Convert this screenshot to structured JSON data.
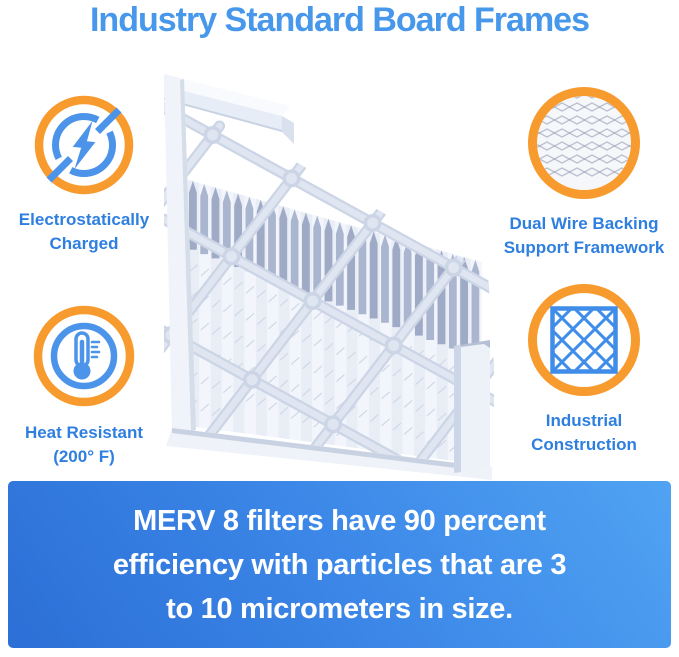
{
  "title": "Industry Standard Board Frames",
  "features": [
    {
      "name": "electrostatically-charged",
      "icon": "lightning-bolt-icon",
      "label_lines": [
        "Electrostatically",
        "Charged"
      ]
    },
    {
      "name": "heat-resistant",
      "icon": "thermometer-icon",
      "label_lines": [
        "Heat Resistant",
        "(200° F)"
      ]
    },
    {
      "name": "dual-wire-backing",
      "icon": "wire-mesh-photo-icon",
      "label_lines": [
        "Dual Wire Backing",
        "Support Framework"
      ]
    },
    {
      "name": "industrial-construction",
      "icon": "lattice-grid-icon",
      "label_lines": [
        "Industrial",
        "Construction"
      ]
    }
  ],
  "product_image": {
    "alt": "pleated-air-filter-with-board-frame-corner"
  },
  "banner": {
    "lines": [
      "MERV 8 filters have 90 percent",
      "efficiency with particles that are 3",
      "to 10 micrometers in size."
    ]
  },
  "colors": {
    "title_blue": "#4797EB",
    "label_blue": "#2E7FE0",
    "accent_orange": "#F89B2F",
    "icon_blue": "#4B94E9",
    "banner_gradient_dark": "#2C6FD6",
    "banner_gradient_light": "#50A3F3",
    "banner_text": "#FFFFFF"
  }
}
